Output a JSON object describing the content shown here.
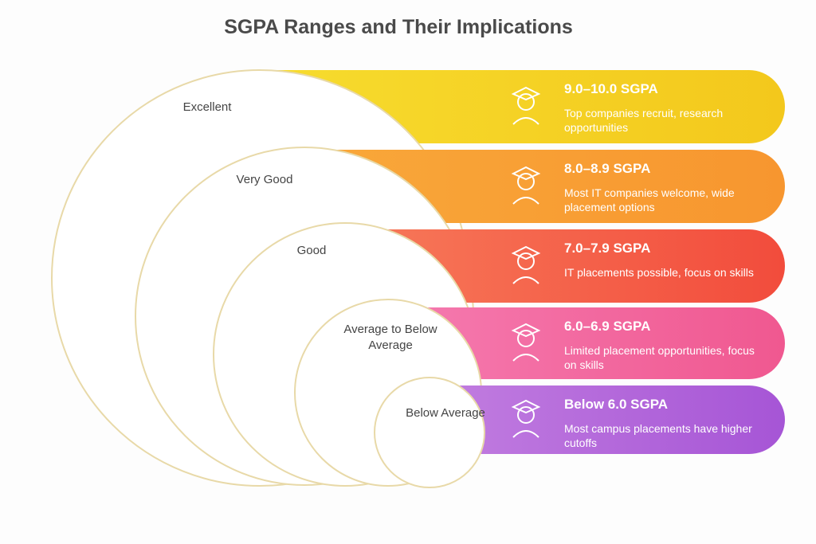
{
  "title": "SGPA Ranges and Their Implications",
  "levels": [
    {
      "label": "Excellent",
      "range": "9.0–10.0 SGPA",
      "description": "Top companies recruit, research opportunities"
    },
    {
      "label": "Very Good",
      "range": "8.0–8.9 SGPA",
      "description": "Most IT companies welcome, wide placement options"
    },
    {
      "label": "Good",
      "range": "7.0–7.9 SGPA",
      "description": "IT placements possible, focus on skills"
    },
    {
      "label": "Average to Below Average",
      "range": "6.0–6.9 SGPA",
      "description": "Limited placement opportunities, focus on skills"
    },
    {
      "label": "Below Average",
      "range": "Below 6.0 SGPA",
      "description": "Most campus placements have higher cutoffs"
    }
  ]
}
